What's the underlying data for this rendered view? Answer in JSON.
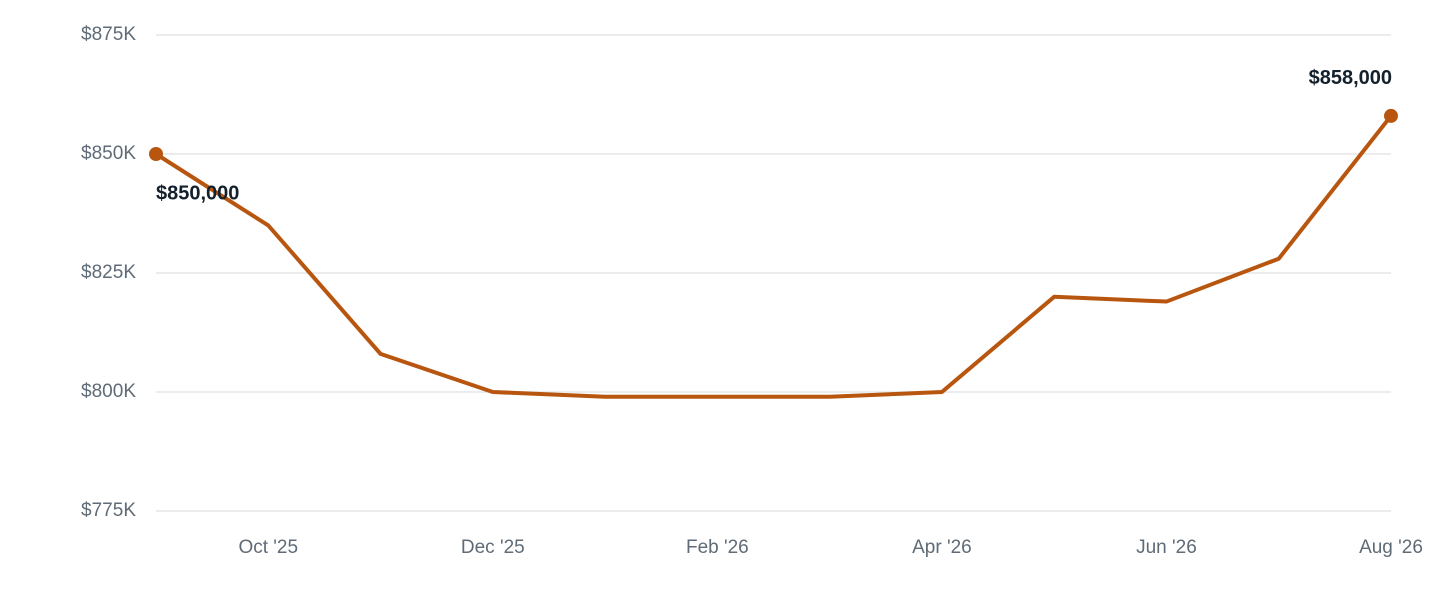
{
  "chart_data": {
    "type": "line",
    "categories": [
      null,
      "Oct '25",
      null,
      "Dec '25",
      null,
      "Feb '26",
      null,
      "Apr '26",
      null,
      "Jun '26",
      null,
      "Aug '26"
    ],
    "series": [
      {
        "color": "#b8560f",
        "values": [
          850000,
          835000,
          808000,
          800000,
          799000,
          799000,
          799000,
          800000,
          820000,
          819000,
          828000,
          858000
        ],
        "value_labels": [
          "$850,000",
          null,
          null,
          null,
          null,
          null,
          null,
          null,
          null,
          null,
          null,
          "$858,000"
        ]
      }
    ],
    "ylim": [
      775000,
      875000
    ],
    "yticks": [
      {
        "value": 775000,
        "label": "$775K"
      },
      {
        "value": 800000,
        "label": "$800K"
      },
      {
        "value": 825000,
        "label": "$825K"
      },
      {
        "value": 850000,
        "label": "$850K"
      },
      {
        "value": 875000,
        "label": "$875K"
      }
    ],
    "grid": true
  }
}
